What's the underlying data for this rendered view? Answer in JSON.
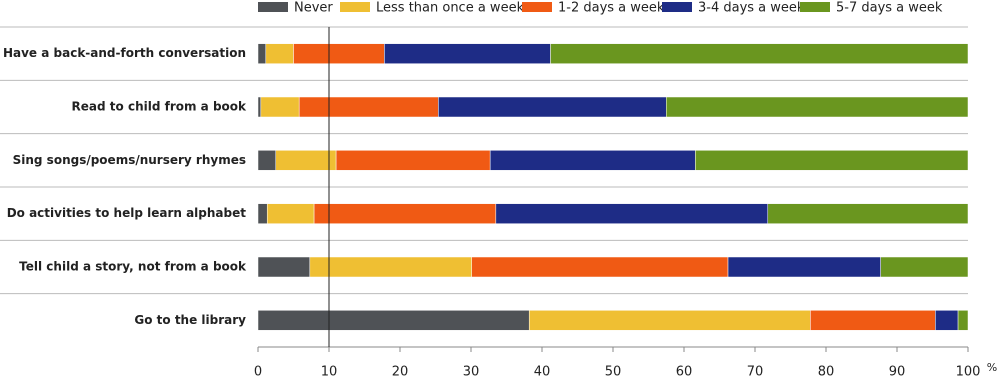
{
  "chart_data": {
    "type": "stacked-bar-horizontal",
    "categories": [
      "Have a back-and-forth conversation",
      "Read to child from a book",
      "Sing songs/poems/nursery rhymes",
      "Do activities to help learn alphabet",
      "Tell child a story, not from a book",
      "Go to the library"
    ],
    "series": [
      {
        "name": "Never",
        "color": "#4f5256",
        "values": [
          1.1,
          0.4,
          2.5,
          1.3,
          7.3,
          38.2
        ]
      },
      {
        "name": "Less than once a week",
        "color": "#efbf33",
        "values": [
          3.9,
          5.4,
          8.5,
          6.6,
          22.8,
          39.6
        ]
      },
      {
        "name": "1-2 days a week",
        "color": "#f05a14",
        "values": [
          12.8,
          19.6,
          21.7,
          25.6,
          36.1,
          17.6
        ]
      },
      {
        "name": "3-4 days a week",
        "color": "#1e2c86",
        "values": [
          23.4,
          32.1,
          28.9,
          38.3,
          21.5,
          3.2
        ]
      },
      {
        "name": "5-7 days a week",
        "color": "#6a961f",
        "values": [
          58.8,
          42.5,
          38.4,
          28.2,
          12.3,
          1.4
        ]
      }
    ],
    "xlim": [
      0,
      100
    ],
    "xticks": [
      0,
      10,
      20,
      30,
      40,
      50,
      60,
      70,
      80,
      90,
      100
    ],
    "x_unit_label": "%",
    "reference_x": 10,
    "grid": true
  }
}
